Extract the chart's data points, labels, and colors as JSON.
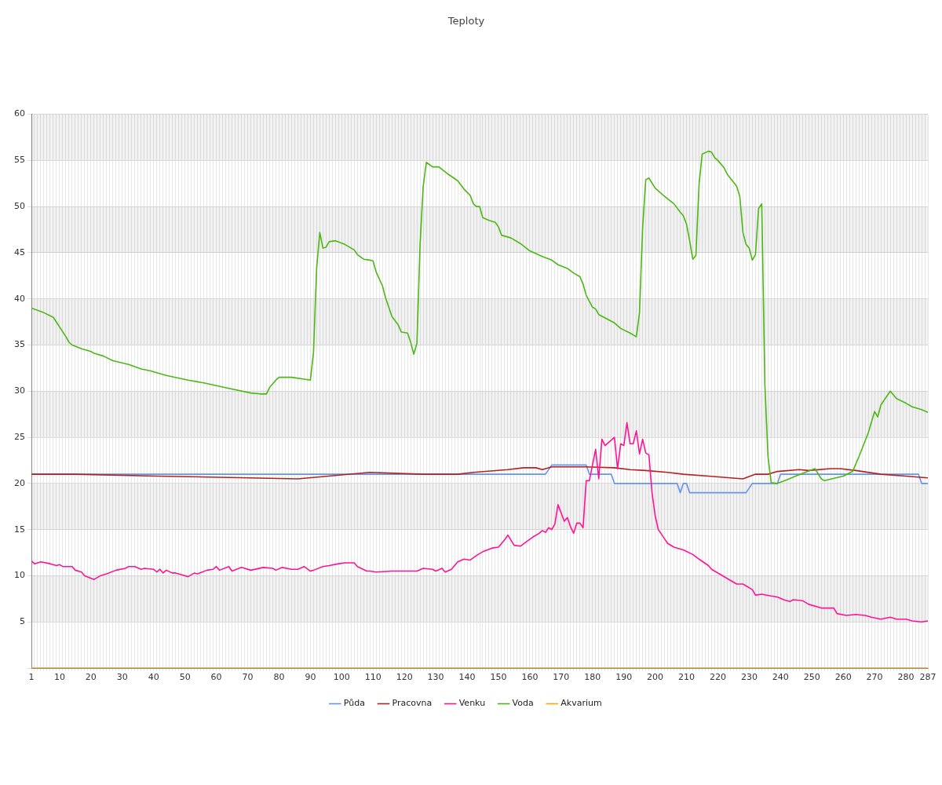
{
  "chart_data": {
    "type": "line",
    "title": "Teploty",
    "xlim": [
      1,
      287
    ],
    "xticks": [
      1,
      {
        "value": 2,
        "label": null
      },
      {
        "value": 3,
        "label": null
      },
      {
        "value": 4,
        "label": null
      },
      {
        "value": 5,
        "label": null
      },
      {
        "value": 6,
        "label": null
      },
      {
        "value": 7,
        "label": null
      },
      {
        "value": 8,
        "label": null
      },
      {
        "value": 9,
        "label": null
      },
      10,
      {
        "value": 11,
        "label": null
      },
      {
        "value": 12,
        "label": null
      },
      {
        "value": 13,
        "label": null
      },
      {
        "value": 14,
        "label": null
      },
      {
        "value": 15,
        "label": null
      },
      {
        "value": 16,
        "label": null
      },
      {
        "value": 17,
        "label": null
      },
      {
        "value": 18,
        "label": null
      },
      {
        "value": 19,
        "label": null
      },
      20,
      {
        "value": 21,
        "label": null
      },
      {
        "value": 22,
        "label": null
      },
      {
        "value": 23,
        "label": null
      },
      {
        "value": 24,
        "label": null
      },
      {
        "value": 25,
        "label": null
      },
      {
        "value": 26,
        "label": null
      },
      {
        "value": 27,
        "label": null
      },
      {
        "value": 28,
        "label": null
      },
      {
        "value": 29,
        "label": null
      },
      30,
      {
        "value": 31,
        "label": null
      },
      {
        "value": 32,
        "label": null
      },
      {
        "value": 33,
        "label": null
      },
      {
        "value": 34,
        "label": null
      },
      {
        "value": 35,
        "label": null
      },
      {
        "value": 36,
        "label": null
      },
      {
        "value": 37,
        "label": null
      },
      {
        "value": 38,
        "label": null
      },
      {
        "value": 39,
        "label": null
      },
      40,
      {
        "value": 41,
        "label": null
      },
      {
        "value": 42,
        "label": null
      },
      {
        "value": 43,
        "label": null
      },
      {
        "value": 44,
        "label": null
      },
      {
        "value": 45,
        "label": null
      },
      {
        "value": 46,
        "label": null
      },
      {
        "value": 47,
        "label": null
      },
      {
        "value": 48,
        "label": null
      },
      {
        "value": 49,
        "label": null
      },
      50,
      {
        "value": 51,
        "label": null
      },
      {
        "value": 52,
        "label": null
      },
      {
        "value": 53,
        "label": null
      },
      {
        "value": 54,
        "label": null
      },
      {
        "value": 55,
        "label": null
      },
      {
        "value": 56,
        "label": null
      },
      {
        "value": 57,
        "label": null
      },
      {
        "value": 58,
        "label": null
      },
      {
        "value": 59,
        "label": null
      },
      60,
      {
        "value": 61,
        "label": null
      },
      {
        "value": 62,
        "label": null
      },
      {
        "value": 63,
        "label": null
      },
      {
        "value": 64,
        "label": null
      },
      {
        "value": 65,
        "label": null
      },
      {
        "value": 66,
        "label": null
      },
      {
        "value": 67,
        "label": null
      },
      {
        "value": 68,
        "label": null
      },
      {
        "value": 69,
        "label": null
      },
      70,
      {
        "value": 71,
        "label": null
      },
      {
        "value": 72,
        "label": null
      },
      {
        "value": 73,
        "label": null
      },
      {
        "value": 74,
        "label": null
      },
      {
        "value": 75,
        "label": null
      },
      {
        "value": 76,
        "label": null
      },
      {
        "value": 77,
        "label": null
      },
      {
        "value": 78,
        "label": null
      },
      {
        "value": 79,
        "label": null
      },
      80,
      {
        "value": 81,
        "label": null
      },
      {
        "value": 82,
        "label": null
      },
      {
        "value": 83,
        "label": null
      },
      {
        "value": 84,
        "label": null
      },
      {
        "value": 85,
        "label": null
      },
      {
        "value": 86,
        "label": null
      },
      {
        "value": 87,
        "label": null
      },
      {
        "value": 88,
        "label": null
      },
      {
        "value": 89,
        "label": null
      },
      90,
      {
        "value": 91,
        "label": null
      },
      {
        "value": 92,
        "label": null
      },
      {
        "value": 93,
        "label": null
      },
      {
        "value": 94,
        "label": null
      },
      {
        "value": 95,
        "label": null
      },
      {
        "value": 96,
        "label": null
      },
      {
        "value": 97,
        "label": null
      },
      {
        "value": 98,
        "label": null
      },
      {
        "value": 99,
        "label": null
      },
      100,
      {
        "value": 101,
        "label": null
      },
      {
        "value": 102,
        "label": null
      },
      {
        "value": 103,
        "label": null
      },
      {
        "value": 104,
        "label": null
      },
      {
        "value": 105,
        "label": null
      },
      {
        "value": 106,
        "label": null
      },
      {
        "value": 107,
        "label": null
      },
      {
        "value": 108,
        "label": null
      },
      {
        "value": 109,
        "label": null
      },
      110,
      {
        "value": 111,
        "label": null
      },
      {
        "value": 112,
        "label": null
      },
      {
        "value": 113,
        "label": null
      },
      {
        "value": 114,
        "label": null
      },
      {
        "value": 115,
        "label": null
      },
      {
        "value": 116,
        "label": null
      },
      {
        "value": 117,
        "label": null
      },
      {
        "value": 118,
        "label": null
      },
      {
        "value": 119,
        "label": null
      },
      120,
      {
        "value": 121,
        "label": null
      },
      {
        "value": 122,
        "label": null
      },
      {
        "value": 123,
        "label": null
      },
      {
        "value": 124,
        "label": null
      },
      {
        "value": 125,
        "label": null
      },
      {
        "value": 126,
        "label": null
      },
      {
        "value": 127,
        "label": null
      },
      {
        "value": 128,
        "label": null
      },
      {
        "value": 129,
        "label": null
      },
      130,
      {
        "value": 131,
        "label": null
      },
      {
        "value": 132,
        "label": null
      },
      {
        "value": 133,
        "label": null
      },
      {
        "value": 134,
        "label": null
      },
      {
        "value": 135,
        "label": null
      },
      {
        "value": 136,
        "label": null
      },
      {
        "value": 137,
        "label": null
      },
      {
        "value": 138,
        "label": null
      },
      {
        "value": 139,
        "label": null
      },
      140,
      {
        "value": 141,
        "label": null
      },
      {
        "value": 142,
        "label": null
      },
      {
        "value": 143,
        "label": null
      },
      {
        "value": 144,
        "label": null
      },
      {
        "value": 145,
        "label": null
      },
      {
        "value": 146,
        "label": null
      },
      {
        "value": 147,
        "label": null
      },
      {
        "value": 148,
        "label": null
      },
      {
        "value": 149,
        "label": null
      },
      150,
      {
        "value": 151,
        "label": null
      },
      {
        "value": 152,
        "label": null
      },
      {
        "value": 153,
        "label": null
      },
      {
        "value": 154,
        "label": null
      },
      {
        "value": 155,
        "label": null
      },
      {
        "value": 156,
        "label": null
      },
      {
        "value": 157,
        "label": null
      },
      {
        "value": 158,
        "label": null
      },
      {
        "value": 159,
        "label": null
      },
      160,
      {
        "value": 161,
        "label": null
      },
      {
        "value": 162,
        "label": null
      },
      {
        "value": 163,
        "label": null
      },
      {
        "value": 164,
        "label": null
      },
      {
        "value": 165,
        "label": null
      },
      {
        "value": 166,
        "label": null
      },
      {
        "value": 167,
        "label": null
      },
      {
        "value": 168,
        "label": null
      },
      {
        "value": 169,
        "label": null
      },
      170,
      {
        "value": 171,
        "label": null
      },
      {
        "value": 172,
        "label": null
      },
      {
        "value": 173,
        "label": null
      },
      {
        "value": 174,
        "label": null
      },
      {
        "value": 175,
        "label": null
      },
      {
        "value": 176,
        "label": null
      },
      {
        "value": 177,
        "label": null
      },
      {
        "value": 178,
        "label": null
      },
      {
        "value": 179,
        "label": null
      },
      180,
      {
        "value": 181,
        "label": null
      },
      {
        "value": 182,
        "label": null
      },
      {
        "value": 183,
        "label": null
      },
      {
        "value": 184,
        "label": null
      },
      {
        "value": 185,
        "label": null
      },
      {
        "value": 186,
        "label": null
      },
      {
        "value": 187,
        "label": null
      },
      {
        "value": 188,
        "label": null
      },
      {
        "value": 189,
        "label": null
      },
      190,
      {
        "value": 191,
        "label": null
      },
      {
        "value": 192,
        "label": null
      },
      {
        "value": 193,
        "label": null
      },
      {
        "value": 194,
        "label": null
      },
      {
        "value": 195,
        "label": null
      },
      {
        "value": 196,
        "label": null
      },
      {
        "value": 197,
        "label": null
      },
      {
        "value": 198,
        "label": null
      },
      {
        "value": 199,
        "label": null
      },
      200,
      {
        "value": 201,
        "label": null
      },
      {
        "value": 202,
        "label": null
      },
      {
        "value": 203,
        "label": null
      },
      {
        "value": 204,
        "label": null
      },
      {
        "value": 205,
        "label": null
      },
      {
        "value": 206,
        "label": null
      },
      {
        "value": 207,
        "label": null
      },
      {
        "value": 208,
        "label": null
      },
      {
        "value": 209,
        "label": null
      },
      210,
      {
        "value": 211,
        "label": null
      },
      {
        "value": 212,
        "label": null
      },
      {
        "value": 213,
        "label": null
      },
      {
        "value": 214,
        "label": null
      },
      {
        "value": 215,
        "label": null
      },
      {
        "value": 216,
        "label": null
      },
      {
        "value": 217,
        "label": null
      },
      {
        "value": 218,
        "label": null
      },
      {
        "value": 219,
        "label": null
      },
      220,
      {
        "value": 221,
        "label": null
      },
      {
        "value": 222,
        "label": null
      },
      {
        "value": 223,
        "label": null
      },
      {
        "value": 224,
        "label": null
      },
      {
        "value": 225,
        "label": null
      },
      {
        "value": 226,
        "label": null
      },
      {
        "value": 227,
        "label": null
      },
      {
        "value": 228,
        "label": null
      },
      {
        "value": 229,
        "label": null
      },
      230,
      {
        "value": 231,
        "label": null
      },
      {
        "value": 232,
        "label": null
      },
      {
        "value": 233,
        "label": null
      },
      {
        "value": 234,
        "label": null
      },
      {
        "value": 235,
        "label": null
      },
      {
        "value": 236,
        "label": null
      },
      {
        "value": 237,
        "label": null
      },
      {
        "value": 238,
        "label": null
      },
      {
        "value": 239,
        "label": null
      },
      240,
      {
        "value": 241,
        "label": null
      },
      {
        "value": 242,
        "label": null
      },
      {
        "value": 243,
        "label": null
      },
      {
        "value": 244,
        "label": null
      },
      {
        "value": 245,
        "label": null
      },
      {
        "value": 246,
        "label": null
      },
      {
        "value": 247,
        "label": null
      },
      {
        "value": 248,
        "label": null
      },
      {
        "value": 249,
        "label": null
      },
      250,
      {
        "value": 251,
        "label": null
      },
      {
        "value": 252,
        "label": null
      },
      {
        "value": 253,
        "label": null
      },
      {
        "value": 254,
        "label": null
      },
      {
        "value": 255,
        "label": null
      },
      {
        "value": 256,
        "label": null
      },
      {
        "value": 257,
        "label": null
      },
      {
        "value": 258,
        "label": null
      },
      {
        "value": 259,
        "label": null
      },
      260,
      {
        "value": 261,
        "label": null
      },
      {
        "value": 262,
        "label": null
      },
      {
        "value": 263,
        "label": null
      },
      {
        "value": 264,
        "label": null
      },
      {
        "value": 265,
        "label": null
      },
      {
        "value": 266,
        "label": null
      },
      {
        "value": 267,
        "label": null
      },
      {
        "value": 268,
        "label": null
      },
      {
        "value": 269,
        "label": null
      },
      270,
      {
        "value": 271,
        "label": null
      },
      {
        "value": 272,
        "label": null
      },
      {
        "value": 273,
        "label": null
      },
      {
        "value": 274,
        "label": null
      },
      {
        "value": 275,
        "label": null
      },
      {
        "value": 276,
        "label": null
      },
      {
        "value": 277,
        "label": null
      },
      {
        "value": 278,
        "label": null
      },
      {
        "value": 279,
        "label": null
      },
      280,
      {
        "value": 281,
        "label": null
      },
      {
        "value": 282,
        "label": null
      },
      {
        "value": 283,
        "label": null
      },
      {
        "value": 284,
        "label": null
      },
      {
        "value": 285,
        "label": null
      },
      {
        "value": 286,
        "label": null
      },
      287
    ],
    "ylim": [
      0,
      60
    ],
    "yticks": [
      {
        "value": 0,
        "label": null
      },
      5,
      10,
      15,
      20,
      25,
      30,
      35,
      40,
      45,
      50,
      55,
      60
    ],
    "grid": true,
    "legend": "bottom",
    "series": [
      {
        "name": "Půda",
        "color": "#6495ed",
        "x": [
          1,
          165,
          167,
          178,
          179,
          186,
          187,
          207,
          208,
          209,
          210,
          211,
          229,
          231,
          239,
          240,
          284,
          285,
          287
        ],
        "values": [
          21,
          21,
          22,
          22,
          21,
          21,
          20,
          20,
          19,
          20,
          20,
          19,
          19,
          20,
          20,
          21,
          21,
          20,
          20
        ]
      },
      {
        "name": "Pracovna",
        "color": "#b22222",
        "x": [
          1,
          15,
          41,
          86,
          109,
          126,
          137,
          142,
          153,
          158,
          162,
          164,
          167,
          178,
          187,
          192,
          197,
          204,
          209,
          217,
          224,
          228,
          232,
          236,
          239,
          246,
          249,
          256,
          259,
          264,
          272,
          280,
          287
        ],
        "values": [
          21.0,
          21.0,
          20.8,
          20.5,
          21.2,
          21.0,
          21.0,
          21.2,
          21.5,
          21.7,
          21.7,
          21.5,
          21.8,
          21.8,
          21.7,
          21.5,
          21.4,
          21.2,
          21.0,
          20.8,
          20.6,
          20.5,
          21.0,
          21.0,
          21.3,
          21.5,
          21.4,
          21.6,
          21.6,
          21.4,
          21.0,
          20.8,
          20.6
        ]
      },
      {
        "name": "Venku",
        "color": "#ff1493",
        "x": [
          1,
          2,
          4,
          7,
          9,
          10,
          11,
          14,
          15,
          17,
          18,
          21,
          23,
          25,
          28,
          31,
          32,
          34,
          36,
          37,
          40,
          41,
          42,
          43,
          44,
          46,
          47,
          49,
          51,
          53,
          54,
          57,
          59,
          60,
          61,
          64,
          65,
          68,
          71,
          75,
          78,
          79,
          81,
          84,
          86,
          88,
          90,
          91,
          94,
          96,
          99,
          101,
          104,
          105,
          108,
          109,
          111,
          116,
          119,
          124,
          126,
          129,
          130,
          132,
          133,
          135,
          137,
          139,
          141,
          143,
          145,
          148,
          150,
          152,
          153,
          155,
          157,
          159,
          161,
          163,
          164,
          165,
          166,
          167,
          168,
          169,
          171,
          172,
          173,
          174,
          175,
          176,
          177,
          178,
          179,
          181,
          182,
          183,
          184,
          187,
          188,
          189,
          190,
          191,
          192,
          193,
          194,
          195,
          196,
          197,
          198,
          199,
          200,
          201,
          203,
          204,
          206,
          207,
          209,
          212,
          214,
          217,
          218,
          221,
          223,
          226,
          228,
          231,
          232,
          234,
          237,
          239,
          241,
          243,
          244,
          247,
          249,
          253,
          257,
          258,
          261,
          264,
          267,
          269,
          272,
          275,
          277,
          280,
          282,
          285,
          287
        ],
        "values": [
          11.6,
          11.3,
          11.5,
          11.3,
          11.1,
          11.2,
          11.0,
          11.0,
          10.6,
          10.4,
          10.0,
          9.6,
          10.0,
          10.2,
          10.6,
          10.8,
          11.0,
          11.0,
          10.7,
          10.8,
          10.7,
          10.4,
          10.7,
          10.3,
          10.6,
          10.3,
          10.3,
          10.1,
          9.9,
          10.3,
          10.2,
          10.6,
          10.7,
          11.0,
          10.6,
          11.0,
          10.5,
          10.9,
          10.6,
          10.9,
          10.8,
          10.6,
          10.9,
          10.7,
          10.7,
          11.0,
          10.5,
          10.6,
          11.0,
          11.1,
          11.3,
          11.4,
          11.4,
          11.0,
          10.5,
          10.5,
          10.4,
          10.5,
          10.5,
          10.5,
          10.8,
          10.7,
          10.5,
          10.8,
          10.4,
          10.7,
          11.5,
          11.8,
          11.7,
          12.2,
          12.6,
          13.0,
          13.1,
          13.9,
          14.4,
          13.3,
          13.2,
          13.7,
          14.2,
          14.6,
          14.9,
          14.7,
          15.2,
          15.0,
          15.6,
          17.7,
          15.9,
          16.3,
          15.3,
          14.6,
          15.7,
          15.7,
          15.2,
          20.3,
          20.3,
          23.7,
          20.5,
          24.8,
          24.1,
          25.0,
          21.6,
          24.3,
          24.1,
          26.6,
          24.3,
          24.3,
          25.7,
          23.2,
          24.8,
          23.3,
          23.1,
          19.0,
          16.5,
          15.0,
          14.0,
          13.5,
          13.1,
          13.0,
          12.8,
          12.3,
          11.8,
          11.1,
          10.7,
          10.1,
          9.7,
          9.1,
          9.1,
          8.5,
          7.9,
          8.0,
          7.8,
          7.7,
          7.4,
          7.2,
          7.4,
          7.3,
          6.9,
          6.5,
          6.5,
          5.9,
          5.7,
          5.8,
          5.7,
          5.5,
          5.3,
          5.5,
          5.3,
          5.3,
          5.1,
          5.0,
          5.1
        ]
      },
      {
        "name": "Voda",
        "color": "#4cb812",
        "x": [
          1,
          5,
          8,
          12,
          13,
          14,
          17,
          20,
          21,
          24,
          27,
          32,
          36,
          39,
          44,
          51,
          56,
          64,
          71,
          74,
          76,
          77,
          79,
          80,
          84,
          88,
          90,
          91,
          92,
          93,
          94,
          95,
          96,
          98,
          101,
          104,
          105,
          107,
          109,
          110,
          111,
          113,
          114,
          116,
          118,
          119,
          121,
          122,
          123,
          124,
          125,
          126,
          127,
          129,
          131,
          134,
          137,
          139,
          141,
          142,
          143,
          144,
          145,
          147,
          149,
          150,
          151,
          154,
          157,
          160,
          164,
          167,
          169,
          172,
          174,
          176,
          177,
          178,
          180,
          181,
          182,
          187,
          189,
          192,
          193,
          194,
          195,
          196,
          197,
          198,
          200,
          203,
          206,
          208,
          209,
          210,
          211,
          212,
          213,
          214,
          215,
          217,
          218,
          219,
          220,
          222,
          223,
          226,
          227,
          228,
          229,
          230,
          231,
          232,
          233,
          234,
          235,
          236,
          237,
          239,
          242,
          247,
          251,
          253,
          254,
          260,
          263,
          265,
          268,
          270,
          271,
          272,
          275,
          277,
          280,
          282,
          285,
          287
        ],
        "values": [
          39.0,
          38.5,
          38.0,
          35.9,
          35.3,
          35.0,
          34.6,
          34.3,
          34.1,
          33.8,
          33.3,
          32.9,
          32.4,
          32.2,
          31.7,
          31.2,
          30.9,
          30.3,
          29.8,
          29.7,
          29.7,
          30.4,
          31.2,
          31.5,
          31.5,
          31.3,
          31.2,
          34.2,
          43.3,
          47.2,
          45.5,
          45.6,
          46.2,
          46.3,
          45.9,
          45.3,
          44.8,
          44.3,
          44.2,
          44.1,
          42.9,
          41.4,
          40.1,
          38.1,
          37.2,
          36.4,
          36.3,
          35.3,
          34.0,
          35.2,
          45.9,
          52.2,
          54.8,
          54.3,
          54.3,
          53.5,
          52.8,
          51.9,
          51.2,
          50.3,
          50.0,
          50.0,
          48.8,
          48.5,
          48.3,
          47.8,
          46.9,
          46.6,
          46.0,
          45.2,
          44.6,
          44.2,
          43.7,
          43.3,
          42.8,
          42.4,
          41.6,
          40.4,
          39.1,
          38.9,
          38.3,
          37.4,
          36.8,
          36.3,
          36.1,
          35.9,
          38.5,
          47.7,
          52.9,
          53.1,
          52.0,
          51.1,
          50.3,
          49.4,
          49.0,
          48.1,
          46.3,
          44.3,
          44.7,
          52.4,
          55.7,
          56.0,
          55.9,
          55.3,
          55.0,
          54.2,
          53.5,
          52.2,
          51.1,
          47.2,
          45.9,
          45.5,
          44.2,
          44.8,
          49.8,
          50.3,
          30.7,
          22.9,
          20.1,
          20.0,
          20.4,
          21.1,
          21.6,
          20.5,
          20.3,
          20.8,
          21.3,
          22.9,
          25.5,
          27.8,
          27.2,
          28.5,
          30.0,
          29.2,
          28.7,
          28.3,
          28.0,
          27.7
        ]
      },
      {
        "name": "Akvarium",
        "color": "#ffa500",
        "x": [
          1,
          287
        ],
        "values": [
          0,
          0
        ]
      }
    ]
  }
}
